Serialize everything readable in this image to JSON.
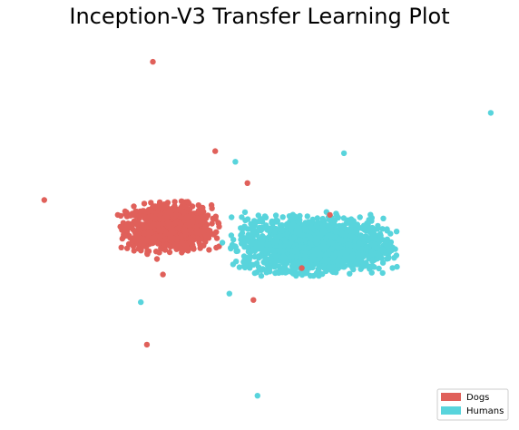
{
  "chart_data": {
    "type": "scatter",
    "title": "Inception-V3 Transfer Learning Plot",
    "xlabel": "",
    "ylabel": "",
    "axes_visible": false,
    "grid": false,
    "xlim": [
      -12,
      12
    ],
    "ylim": [
      -9,
      9
    ],
    "legend_position": "bottom-right",
    "series": [
      {
        "name": "Dogs",
        "color": "#e0605a",
        "cluster": {
          "count": 900,
          "center": [
            -4.5,
            0.0
          ],
          "spread": [
            2.3,
            1.15
          ]
        },
        "points": [
          [
            -5.3,
            7.8
          ],
          [
            -10.7,
            1.3
          ],
          [
            -2.2,
            3.6
          ],
          [
            -5.6,
            -5.5
          ],
          [
            -0.3,
            -3.4
          ],
          [
            3.5,
            0.6
          ],
          [
            2.1,
            -1.9
          ],
          [
            -4.8,
            -2.2
          ],
          [
            -0.6,
            2.1
          ]
        ]
      },
      {
        "name": "Humans",
        "color": "#58d4dc",
        "cluster": {
          "count": 1700,
          "center": [
            2.7,
            -0.8
          ],
          "spread": [
            3.8,
            1.35
          ]
        },
        "points": [
          [
            11.5,
            5.4
          ],
          [
            -1.2,
            3.1
          ],
          [
            4.2,
            3.5
          ],
          [
            -5.9,
            -3.5
          ],
          [
            -0.1,
            -7.9
          ],
          [
            -1.5,
            -3.1
          ]
        ]
      }
    ]
  },
  "legend": {
    "items": [
      {
        "label": "Dogs",
        "color": "#e0605a"
      },
      {
        "label": "Humans",
        "color": "#58d4dc"
      }
    ]
  }
}
